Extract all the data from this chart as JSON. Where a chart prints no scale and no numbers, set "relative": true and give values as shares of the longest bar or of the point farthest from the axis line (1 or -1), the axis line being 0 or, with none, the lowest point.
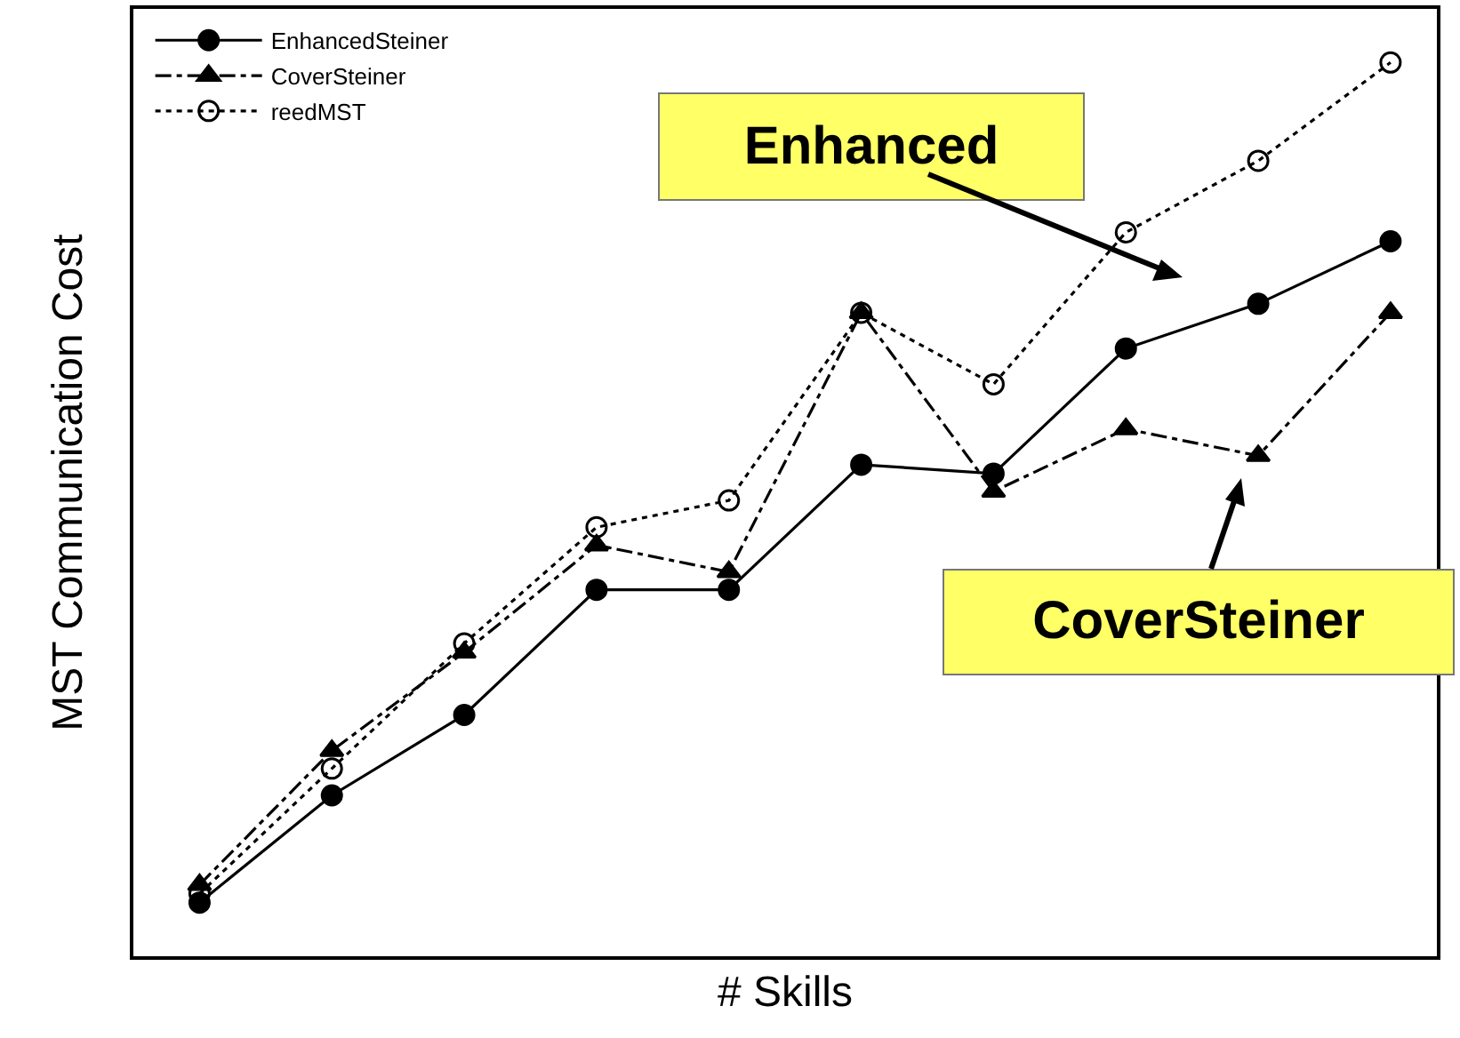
{
  "chart_data": {
    "type": "line",
    "relative": true,
    "xlabel": "# Skills",
    "ylabel": "MST Communication Cost",
    "categories": [
      null,
      null,
      null,
      null,
      null,
      null,
      null,
      null,
      null,
      null
    ],
    "series": [
      {
        "name": "EnhancedSteiner",
        "color": "#000000",
        "marker": "circle",
        "line_style": "solid",
        "values": [
          0.06,
          0.18,
          0.27,
          0.41,
          0.41,
          0.55,
          0.54,
          0.68,
          0.73,
          0.8
        ]
      },
      {
        "name": "CoverSteiner",
        "color": "#000000",
        "marker": "triangle",
        "line_style": "dashdot",
        "values": [
          0.08,
          0.23,
          0.34,
          0.46,
          0.43,
          0.72,
          0.52,
          0.59,
          0.56,
          0.72
        ]
      },
      {
        "name": "reedMST",
        "color": "#000000",
        "marker": "open circle",
        "line_style": "dotted",
        "values": [
          0.07,
          0.21,
          0.35,
          0.48,
          0.51,
          0.72,
          0.64,
          0.81,
          0.89,
          1
        ]
      }
    ],
    "legend": "top left",
    "annotations": [
      "Enhanced",
      "CoverSteiner"
    ]
  }
}
